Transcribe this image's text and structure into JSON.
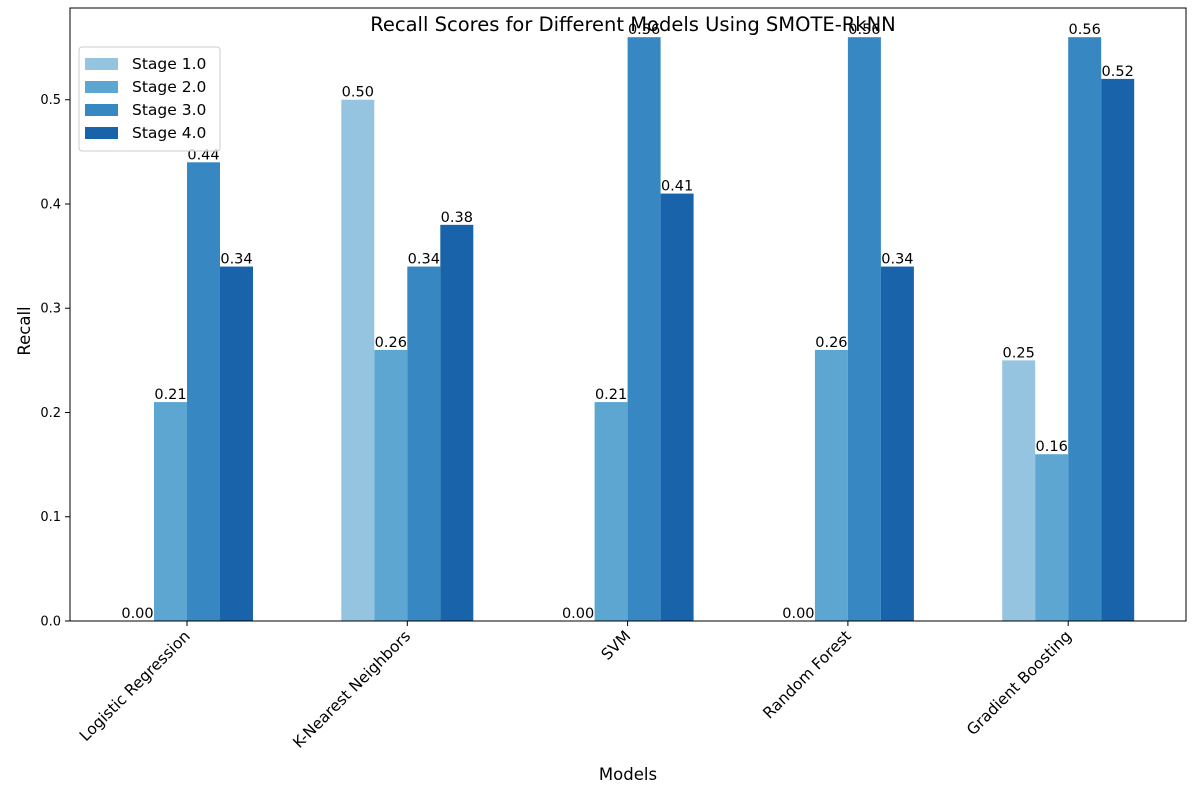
{
  "chart_data": {
    "type": "bar",
    "title": "Recall Scores for Different Models Using SMOTE-RkNN",
    "xlabel": "Models",
    "ylabel": "Recall",
    "categories": [
      "Logistic Regression",
      "K-Nearest Neighbors",
      "SVM",
      "Random Forest",
      "Gradient Boosting"
    ],
    "series": [
      {
        "name": "Stage 1.0",
        "color": "#95c4e0",
        "values": [
          0.0,
          0.5,
          0.0,
          0.0,
          0.25
        ],
        "labels": [
          "0.00",
          "0.50",
          "0.00",
          "0.00",
          "0.25"
        ]
      },
      {
        "name": "Stage 2.0",
        "color": "#5ea6d2",
        "values": [
          0.21,
          0.26,
          0.21,
          0.26,
          0.16
        ],
        "labels": [
          "0.21",
          "0.26",
          "0.21",
          "0.26",
          "0.16"
        ]
      },
      {
        "name": "Stage 3.0",
        "color": "#3787c2",
        "values": [
          0.44,
          0.34,
          0.56,
          0.56,
          0.56
        ],
        "labels": [
          "0.44",
          "0.34",
          "0.56",
          "0.56",
          "0.56"
        ]
      },
      {
        "name": "Stage 4.0",
        "color": "#1863aa",
        "values": [
          0.34,
          0.38,
          0.41,
          0.34,
          0.52
        ],
        "labels": [
          "0.34",
          "0.38",
          "0.41",
          "0.34",
          "0.52"
        ]
      }
    ],
    "ylim": [
      0,
      0.588
    ],
    "yticks": [
      "0.0",
      "0.1",
      "0.2",
      "0.3",
      "0.4",
      "0.5"
    ],
    "ytick_values": [
      0,
      0.1,
      0.2,
      0.3,
      0.4,
      0.5
    ],
    "grid": false,
    "legend_position": "top-left"
  }
}
